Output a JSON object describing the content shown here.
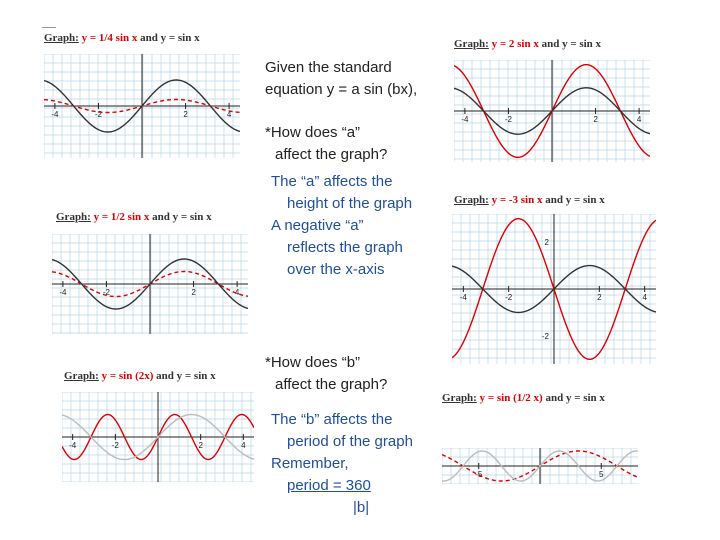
{
  "notes": {
    "intro_line1": "Given the standard",
    "intro_line2": "equation y = a sin (bx),",
    "q_a_line1": "*How does “a”",
    "q_a_line2": "affect the graph?",
    "ans_a_line1": "The “a” affects the",
    "ans_a_line2": "height of the graph",
    "ans_a_line3": "A negative “a”",
    "ans_a_line4": "reflects the graph",
    "ans_a_line5": "over the x-axis",
    "q_b_line1": "*How does “b”",
    "q_b_line2": "affect the graph?",
    "ans_b_line1": "The “b” affects the",
    "ans_b_line2": "period of the graph",
    "ans_b_line3": "Remember,",
    "ans_b_line4": "period = 360",
    "ans_b_line5": "|b|"
  },
  "chart_data": [
    {
      "type": "line",
      "title_prefix": "Graph:",
      "title_red": "y = 1/4 sin x",
      "title_rest": "and y = sin x",
      "xlim": [
        -4.5,
        4.5
      ],
      "ylim": [
        -2,
        2
      ],
      "x_tick_labels": [
        "-4",
        "-2",
        "2",
        "4"
      ],
      "series": [
        {
          "amplitude": 0.25,
          "frequency": 1,
          "color": "#d00",
          "dashed": true
        },
        {
          "amplitude": 1,
          "frequency": 1,
          "color": "#333",
          "dashed": false
        }
      ]
    },
    {
      "type": "line",
      "title_prefix": "Graph:",
      "title_red": "y = 2 sin x",
      "title_rest": "and y = sin x",
      "xlim": [
        -4.5,
        4.5
      ],
      "ylim": [
        -2.2,
        2.2
      ],
      "x_tick_labels": [
        "-4",
        "-2",
        "2",
        "4"
      ],
      "series": [
        {
          "amplitude": 2,
          "frequency": 1,
          "color": "#d00",
          "dashed": false
        },
        {
          "amplitude": 1,
          "frequency": 1,
          "color": "#333",
          "dashed": false
        }
      ]
    },
    {
      "type": "line",
      "title_prefix": "Graph:",
      "title_red": "y = 1/2 sin x",
      "title_rest": "and y = sin x",
      "xlim": [
        -4.5,
        4.5
      ],
      "ylim": [
        -2,
        2
      ],
      "x_tick_labels": [
        "-4",
        "-2",
        "2",
        "4"
      ],
      "series": [
        {
          "amplitude": 0.5,
          "frequency": 1,
          "color": "#d00",
          "dashed": true
        },
        {
          "amplitude": 1,
          "frequency": 1,
          "color": "#333",
          "dashed": false
        }
      ]
    },
    {
      "type": "line",
      "title_prefix": "Graph:",
      "title_red": "y = -3 sin x",
      "title_rest": "and y = sin x",
      "xlim": [
        -4.5,
        4.5
      ],
      "ylim": [
        -3.2,
        3.2
      ],
      "x_tick_labels": [
        "-4",
        "-2",
        "2",
        "4"
      ],
      "y_tick_labels": [
        "2",
        "-2"
      ],
      "series": [
        {
          "amplitude": -3,
          "frequency": 1,
          "color": "#d00",
          "dashed": false
        },
        {
          "amplitude": 1,
          "frequency": 1,
          "color": "#333",
          "dashed": false
        }
      ]
    },
    {
      "type": "line",
      "title_prefix": "Graph:",
      "title_red": "y = sin (2x)",
      "title_rest": "and y = sin x",
      "xlim": [
        -4.5,
        4.5
      ],
      "ylim": [
        -2,
        2
      ],
      "x_tick_labels": [
        "-4",
        "-2",
        "2",
        "4"
      ],
      "series": [
        {
          "amplitude": 1,
          "frequency": 2,
          "color": "#d00",
          "dashed": false
        },
        {
          "amplitude": 1,
          "frequency": 1,
          "color": "#bbb",
          "dashed": false
        }
      ]
    },
    {
      "type": "line",
      "title_prefix": "Graph:",
      "title_red": "y = sin (1/2 x)",
      "title_rest": "and y = sin x",
      "xlim": [
        -8,
        8
      ],
      "ylim": [
        -1.2,
        1.2
      ],
      "x_tick_labels": [
        "-5",
        "5"
      ],
      "series": [
        {
          "amplitude": 1,
          "frequency": 0.5,
          "color": "#d00",
          "dashed": true
        },
        {
          "amplitude": 1,
          "frequency": 1,
          "color": "#bbb",
          "dashed": false
        }
      ]
    }
  ]
}
